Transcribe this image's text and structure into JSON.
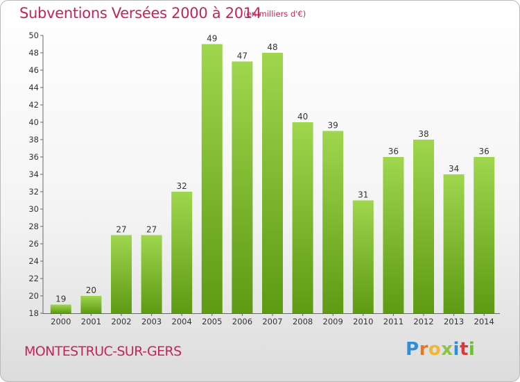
{
  "title": "Subventions Versées 2000 à 2014",
  "subtitle": "(en milliers d'€)",
  "commune": "MONTESTRUC-SUR-GERS",
  "logo": {
    "letters": [
      "P",
      "r",
      "o",
      "x",
      "i",
      "t",
      "i"
    ]
  },
  "colors": {
    "title": "#c2255c",
    "bar_top": "#9fd64e",
    "bar_bottom": "#5e9a14",
    "axis_text": "#333333"
  },
  "chart_data": {
    "type": "bar",
    "categories": [
      "2000",
      "2001",
      "2002",
      "2003",
      "2004",
      "2005",
      "2006",
      "2007",
      "2008",
      "2009",
      "2010",
      "2011",
      "2012",
      "2013",
      "2014"
    ],
    "values": [
      19,
      20,
      27,
      27,
      32,
      49,
      47,
      48,
      40,
      39,
      31,
      36,
      38,
      34,
      36
    ],
    "data_labels": [
      "19",
      "20",
      "27",
      "27",
      "32",
      "49",
      "47",
      "48",
      "40",
      "39",
      "31",
      "36",
      "38",
      "34",
      "36"
    ],
    "ylim": [
      18,
      50
    ],
    "yticks": [
      "18",
      "20",
      "22",
      "24",
      "26",
      "28",
      "30",
      "32",
      "34",
      "36",
      "38",
      "40",
      "42",
      "44",
      "46",
      "48",
      "50"
    ],
    "grid": false,
    "xlabel": "",
    "ylabel": ""
  }
}
